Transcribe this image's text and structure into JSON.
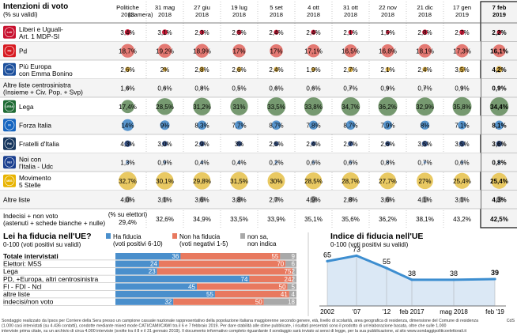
{
  "poll": {
    "title": "Intenzioni di voto",
    "subtitle": "(% su validi)",
    "columns": [
      {
        "line1": "Politiche",
        "line2": "2018",
        "line2b": "(Camera)"
      },
      {
        "line1": "31 mag",
        "line2": "2018",
        "line2b": ""
      },
      {
        "line1": "27 giu",
        "line2": "2018",
        "line2b": ""
      },
      {
        "line1": "19 lug",
        "line2": "2018",
        "line2b": ""
      },
      {
        "line1": "5 set",
        "line2": "2018",
        "line2b": ""
      },
      {
        "line1": "4 ott",
        "line2": "2018",
        "line2b": ""
      },
      {
        "line1": "31 ott",
        "line2": "2018",
        "line2b": ""
      },
      {
        "line1": "22 nov",
        "line2": "2018",
        "line2b": ""
      },
      {
        "line1": "21 dic",
        "line2": "2018",
        "line2b": ""
      },
      {
        "line1": "17 gen",
        "line2": "2019",
        "line2b": ""
      },
      {
        "line1": "7 feb",
        "line2": "2019",
        "line2b": ""
      }
    ],
    "rows": [
      {
        "label": [
          "Liberi e Uguali-",
          "Art. 1 MDP-SI"
        ],
        "logo": "LeU",
        "logo_color": "#c8102e",
        "color": "#c8102e",
        "values": [
          "3,4%",
          "3,1%",
          "2,3%",
          "2,5%",
          "2,4%",
          "2,4%",
          "2,1%",
          "1,5%",
          "2,8%",
          "2,7%",
          "2,2%"
        ],
        "nums": [
          3.4,
          3.1,
          2.3,
          2.5,
          2.4,
          2.4,
          2.1,
          1.5,
          2.8,
          2.7,
          2.2
        ]
      },
      {
        "label": [
          "Pd"
        ],
        "logo": "PD",
        "logo_color": "#d71920",
        "color": "#e3726b",
        "values": [
          "18,7%",
          "19,2%",
          "18,9%",
          "17%",
          "17%",
          "17,1%",
          "16,5%",
          "16,8%",
          "18,1%",
          "17,3%",
          "16,1%"
        ],
        "nums": [
          18.7,
          19.2,
          18.9,
          17,
          17,
          17.1,
          16.5,
          16.8,
          18.1,
          17.3,
          16.1
        ]
      },
      {
        "label": [
          "Più Europa",
          "con Emma Bonino"
        ],
        "logo": "+EU",
        "logo_color": "#1b4f9c",
        "color": "#d4a63a",
        "values": [
          "2,6%",
          "2%",
          "2,8%",
          "2,6%",
          "2,4%",
          "1,9%",
          "2,7%",
          "2,1%",
          "2,4%",
          "3,5%",
          "4,2%"
        ],
        "nums": [
          2.6,
          2,
          2.8,
          2.6,
          2.4,
          1.9,
          2.7,
          2.1,
          2.4,
          3.5,
          4.2
        ]
      },
      {
        "label": [
          "Altre liste centrosinistra",
          "(Insieme + Civ. Pop. + Svp)"
        ],
        "logo": "",
        "logo_color": "",
        "color": "#9a9a9a",
        "values": [
          "1,6%",
          "0,6%",
          "0,8%",
          "0,5%",
          "0,6%",
          "0,6%",
          "0,7%",
          "0,9%",
          "0,7%",
          "0,9%",
          "0,9%"
        ],
        "nums": [
          1.6,
          0.6,
          0.8,
          0.5,
          0.6,
          0.6,
          0.7,
          0.9,
          0.7,
          0.9,
          0.9
        ]
      },
      {
        "label": [
          "Lega"
        ],
        "logo": "LEGA",
        "logo_color": "#1e6b34",
        "color": "#6f9468",
        "values": [
          "17,4%",
          "28,5%",
          "31,2%",
          "31%",
          "33,5%",
          "33,8%",
          "34,7%",
          "36,2%",
          "32,9%",
          "35,8%",
          "34,4%"
        ],
        "nums": [
          17.4,
          28.5,
          31.2,
          31,
          33.5,
          33.8,
          34.7,
          36.2,
          32.9,
          35.8,
          34.4
        ]
      },
      {
        "label": [
          "Forza Italia"
        ],
        "logo": "FI",
        "logo_color": "#1565c0",
        "color": "#4f8fca",
        "values": [
          "14%",
          "9%",
          "8,3%",
          "7,7%",
          "8,7%",
          "7,8%",
          "8,7%",
          "7,9%",
          "8%",
          "7,1%",
          "8,1%"
        ],
        "nums": [
          14,
          9,
          8.3,
          7.7,
          8.7,
          7.8,
          8.7,
          7.9,
          8,
          7.1,
          8.1
        ]
      },
      {
        "label": [
          "Fratelli d'Italia"
        ],
        "logo": "FdI",
        "logo_color": "#17375e",
        "color": "#2c4a80",
        "values": [
          "4,3%",
          "3,0%",
          "2,9%",
          "3%",
          "2,5%",
          "2,4%",
          "2,7%",
          "2,6%",
          "3,5%",
          "3,5%",
          "3,6%"
        ],
        "nums": [
          4.3,
          3.0,
          2.9,
          3,
          2.5,
          2.4,
          2.7,
          2.6,
          3.5,
          3.5,
          3.6
        ]
      },
      {
        "label": [
          "Noi con",
          "l'Italia - Udc"
        ],
        "logo": "NcI",
        "logo_color": "#1a3f8f",
        "color": "#7fa6d6",
        "values": [
          "1,3%",
          "0,9%",
          "0,4%",
          "0,4%",
          "0,2%",
          "0,6%",
          "0,6%",
          "0,8%",
          "0,7%",
          "0,6%",
          "0,8%"
        ],
        "nums": [
          1.3,
          0.9,
          0.4,
          0.4,
          0.2,
          0.6,
          0.6,
          0.8,
          0.7,
          0.6,
          0.8
        ]
      },
      {
        "label": [
          "Movimento",
          "5 Stelle"
        ],
        "logo": "M5S",
        "logo_color": "#e8b300",
        "color": "#e8c65a",
        "values": [
          "32,7%",
          "30,1%",
          "29,8%",
          "31,5%",
          "30%",
          "28,5%",
          "28,7%",
          "27,7%",
          "27%",
          "25,4%",
          "25,4%"
        ],
        "nums": [
          32.7,
          30.1,
          29.8,
          31.5,
          30,
          28.5,
          28.7,
          27.7,
          27,
          25.4,
          25.4
        ]
      },
      {
        "label": [
          "Altre liste"
        ],
        "logo": "",
        "logo_color": "",
        "color": "#9a9a9a",
        "values": [
          "4,0%",
          "3,1%",
          "3,6%",
          "3,8%",
          "2,7%",
          "4,9%",
          "2,8%",
          "3,6%",
          "4,1%",
          "3,1%",
          "4,3%"
        ],
        "nums": [
          4.0,
          3.1,
          3.6,
          3.8,
          2.7,
          4.9,
          2.8,
          3.6,
          4.1,
          3.1,
          4.3
        ]
      }
    ],
    "indecisi": {
      "label": [
        "Indecisi + non voto",
        "(astenuti + schede bianche + nulle)"
      ],
      "first_note": "(% su elettori)",
      "values": [
        "29,4%",
        "32,6%",
        "34,9%",
        "33,5%",
        "33,9%",
        "35,1%",
        "35,6%",
        "36,2%",
        "38,1%",
        "43,2%",
        "42,5%"
      ]
    }
  },
  "trust_bars": {
    "title": "Lei ha fiducia nell'UE?",
    "subtitle": "0-100 (voti positivi su validi)",
    "legend": [
      {
        "line1": "Ha fiducia",
        "line2": "(voti positivi 6-10)",
        "color": "#4a8fcc"
      },
      {
        "line1": "Non ha fiducia",
        "line2": "(voti negativi 1-5)",
        "color": "#e8795f"
      },
      {
        "line1": "non sa,",
        "line2": "non indica",
        "color": "#a9a9a9"
      }
    ],
    "rows": [
      {
        "label": "Totale intervistati",
        "bold": true,
        "values": [
          36,
          55,
          9
        ]
      },
      {
        "label": "Elettori: M5S",
        "bold": false,
        "values": [
          24,
          70,
          6
        ]
      },
      {
        "label": "Lega",
        "bold": false,
        "values": [
          23,
          75,
          2
        ]
      },
      {
        "label": "PD, +Europa, altri centrosinistra",
        "bold": false,
        "values": [
          74,
          24,
          2
        ]
      },
      {
        "label": "FI - FDI - Ncl",
        "bold": false,
        "values": [
          45,
          50,
          5
        ]
      },
      {
        "label": "altre liste",
        "bold": false,
        "values": [
          55,
          41,
          4
        ]
      },
      {
        "label": "indecisi/non voto",
        "bold": false,
        "values": [
          32,
          50,
          18
        ]
      }
    ]
  },
  "chart_data": {
    "type": "line",
    "title": "Indice di fiducia nell'UE",
    "subtitle": "0-100 (voti positivi su validi)",
    "x": [
      "2002",
      "'07",
      "'12",
      "feb 2017",
      "mag 2018",
      "feb '19"
    ],
    "values": [
      65,
      73,
      55,
      38,
      38,
      39
    ],
    "xlabel": "",
    "ylabel": "",
    "ylim": [
      0,
      100
    ],
    "grid": false,
    "color": "#3d8ed0"
  },
  "footnote": [
    "Sondaggio realizzato da Ipsos per Corriere della Sera presso un campione casuale nazionale rappresentativo della popolazione italiana maggiorenne secondo genere, età, livello di scolarità, area geografica di residenza, dimensione del Comune di residenza",
    "(1.000 casi intervistati (su 4.436 contatti), condotte mediante mixed mode CATI/CAMI/CAWI tra il 6 e 7 febbraio 2019. Per dare stabilità alle stime pubblicate, i risultati presentati sono il prodotto di un'elaborazione basata, oltre che sulle 1.000",
    "interviste prima citate, su un archivio di circa 4.000 interviste (svolte tra il 8 e il 31 gennaio 2019). Il documento informativo completo riguardante il sondaggio sarà inviato ai sensi di legge, per la sua pubblicazione, al sito www.sondaggipoliticoelettorali.it"
  ],
  "credit": "CdS"
}
